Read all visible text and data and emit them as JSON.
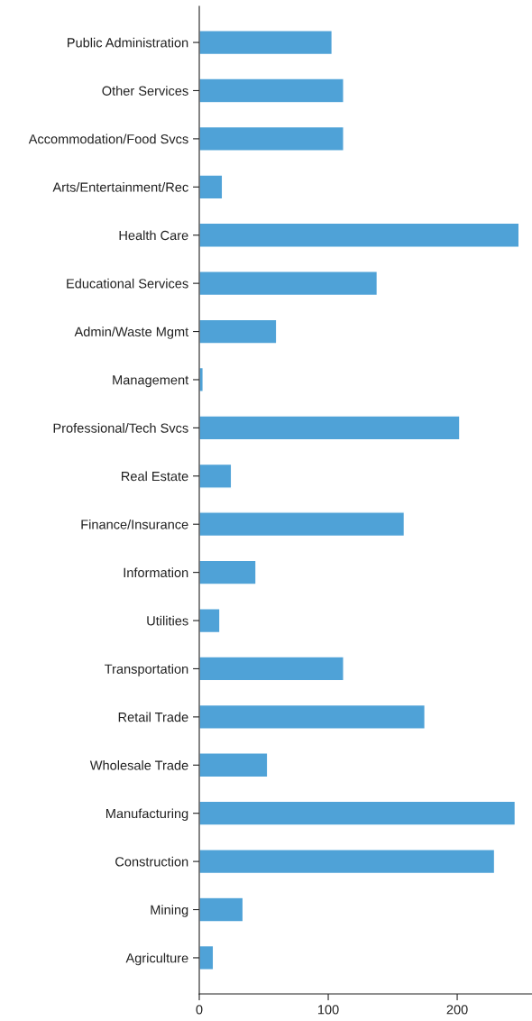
{
  "chart_data": {
    "type": "bar",
    "orientation": "horizontal",
    "categories": [
      "Public Administration",
      "Other Services",
      "Accommodation/Food Svcs",
      "Arts/Entertainment/Rec",
      "Health Care",
      "Educational Services",
      "Admin/Waste Mgmt",
      "Management",
      "Professional/Tech Svcs",
      "Real Estate",
      "Finance/Insurance",
      "Information",
      "Utilities",
      "Transportation",
      "Retail Trade",
      "Wholesale Trade",
      "Manufacturing",
      "Construction",
      "Mining",
      "Agriculture"
    ],
    "values": [
      103,
      112,
      112,
      18,
      248,
      138,
      60,
      3,
      202,
      25,
      159,
      44,
      16,
      112,
      175,
      53,
      245,
      229,
      34,
      11
    ],
    "color": "#4fa2d7",
    "xlim": [
      0,
      258
    ],
    "xticks": [
      0,
      100,
      200
    ],
    "grid": false,
    "legend": false
  }
}
